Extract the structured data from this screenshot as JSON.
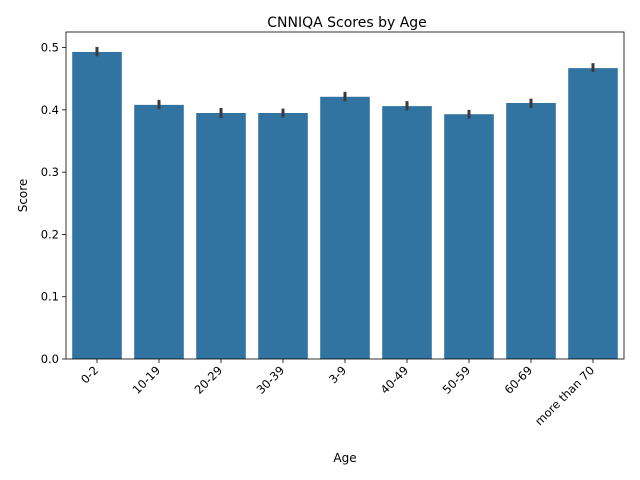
{
  "chart_data": {
    "type": "bar",
    "title": "CNNIQA Scores by Age",
    "xlabel": "Age",
    "ylabel": "Score",
    "categories": [
      "0-2",
      "10-19",
      "20-29",
      "30-39",
      "3-9",
      "40-49",
      "50-59",
      "60-69",
      "more than 70"
    ],
    "values": [
      0.493,
      0.408,
      0.395,
      0.395,
      0.421,
      0.406,
      0.393,
      0.411,
      0.467
    ],
    "error_low": [
      0.486,
      0.401,
      0.387,
      0.388,
      0.414,
      0.399,
      0.386,
      0.403,
      0.461
    ],
    "error_high": [
      0.501,
      0.416,
      0.403,
      0.402,
      0.429,
      0.414,
      0.4,
      0.418,
      0.475
    ],
    "ylim": [
      0,
      0.525
    ],
    "yticks": [
      0.0,
      0.1,
      0.2,
      0.3,
      0.4,
      0.5
    ],
    "ytick_labels": [
      "0.0",
      "0.1",
      "0.2",
      "0.3",
      "0.4",
      "0.5"
    ],
    "bar_color": "#3274a1",
    "error_color": "#3b3b3b",
    "legend": "none",
    "grid": false
  }
}
